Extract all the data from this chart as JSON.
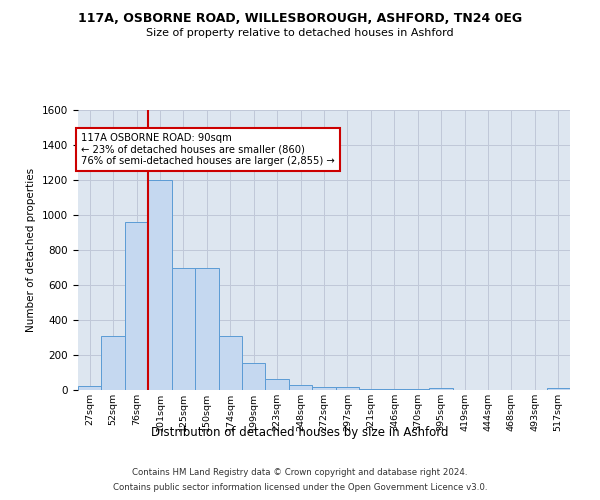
{
  "title_line1": "117A, OSBORNE ROAD, WILLESBOROUGH, ASHFORD, TN24 0EG",
  "title_line2": "Size of property relative to detached houses in Ashford",
  "xlabel": "Distribution of detached houses by size in Ashford",
  "ylabel": "Number of detached properties",
  "categories": [
    "27sqm",
    "52sqm",
    "76sqm",
    "101sqm",
    "125sqm",
    "150sqm",
    "174sqm",
    "199sqm",
    "223sqm",
    "248sqm",
    "272sqm",
    "297sqm",
    "321sqm",
    "346sqm",
    "370sqm",
    "395sqm",
    "419sqm",
    "444sqm",
    "468sqm",
    "493sqm",
    "517sqm"
  ],
  "values": [
    25,
    310,
    960,
    1200,
    700,
    700,
    310,
    155,
    65,
    30,
    20,
    15,
    8,
    5,
    3,
    10,
    2,
    1,
    1,
    1,
    10
  ],
  "bar_color": "#c5d8f0",
  "bar_edge_color": "#5b9bd5",
  "grid_color": "#c0c8d8",
  "property_line_x": 2.5,
  "annotation_line1": "117A OSBORNE ROAD: 90sqm",
  "annotation_line2": "← 23% of detached houses are smaller (860)",
  "annotation_line3": "76% of semi-detached houses are larger (2,855) →",
  "annotation_box_color": "#ffffff",
  "annotation_box_edge_color": "#cc0000",
  "vline_color": "#cc0000",
  "ylim": [
    0,
    1600
  ],
  "yticks": [
    0,
    200,
    400,
    600,
    800,
    1000,
    1200,
    1400,
    1600
  ],
  "footnote1": "Contains HM Land Registry data © Crown copyright and database right 2024.",
  "footnote2": "Contains public sector information licensed under the Open Government Licence v3.0.",
  "bg_color": "#ffffff",
  "plot_bg_color": "#dde6f0"
}
